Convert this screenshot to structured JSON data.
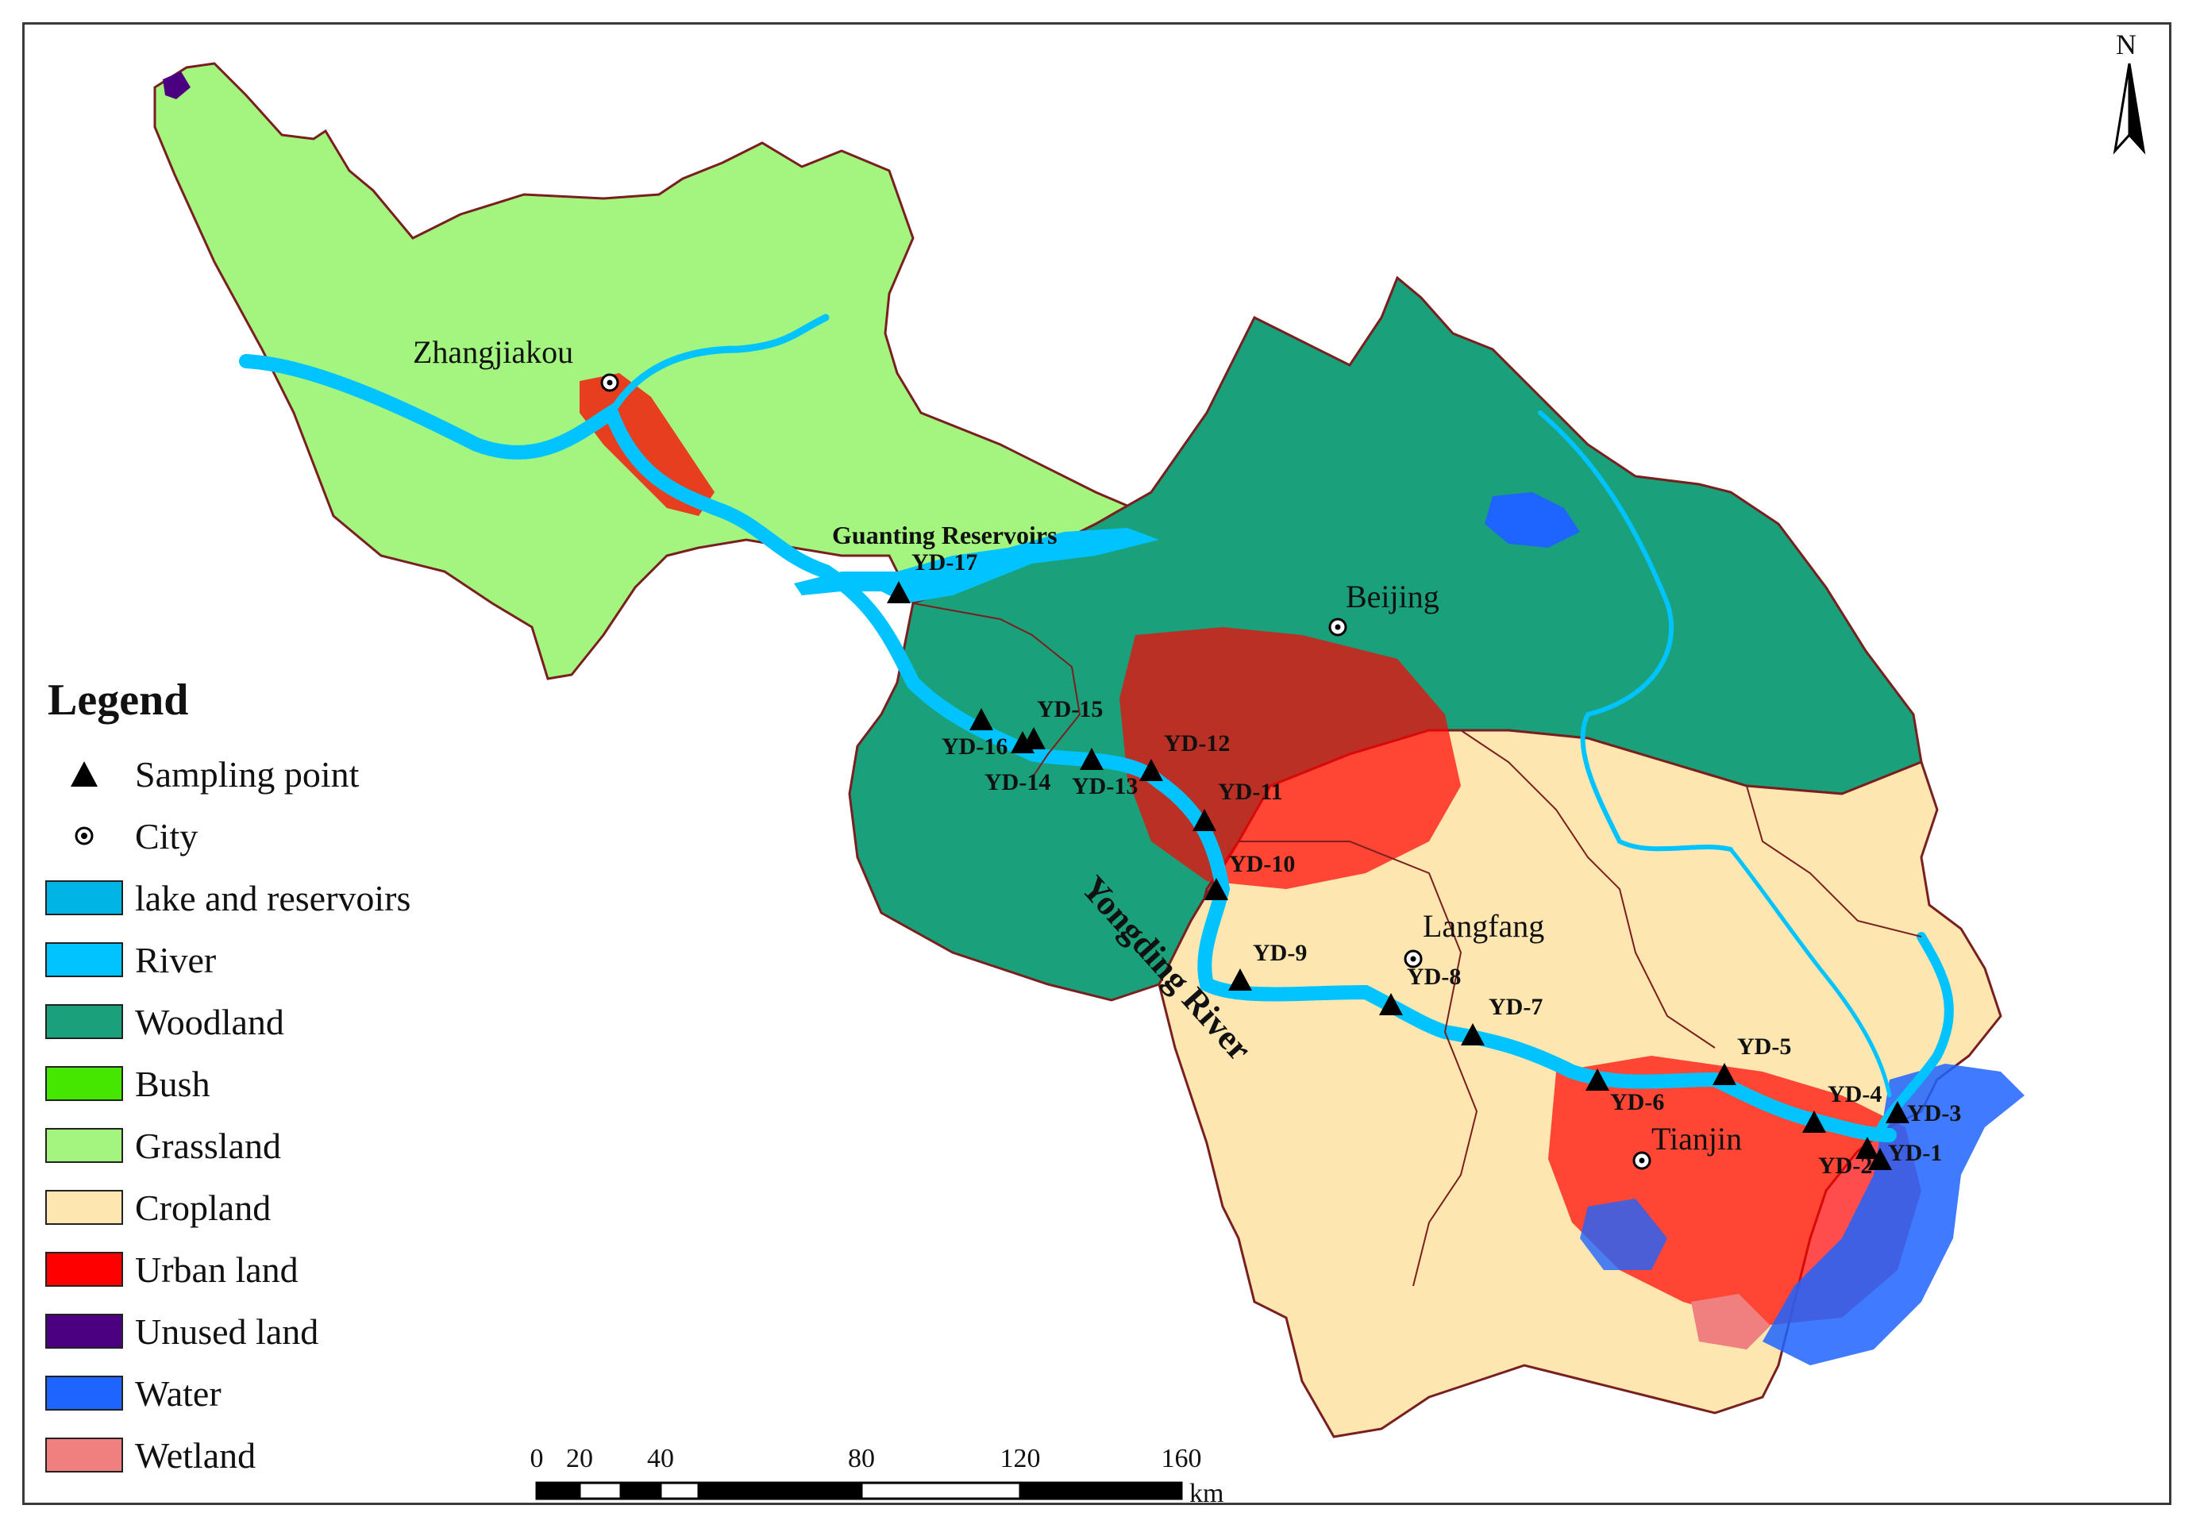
{
  "north_arrow": {
    "label": "N"
  },
  "map_labels": {
    "reservoir": "Guanting Reservoirs",
    "river": "Yongding River"
  },
  "cities": [
    {
      "name": "Zhangjiakou"
    },
    {
      "name": "Beijing"
    },
    {
      "name": "Langfang"
    },
    {
      "name": "Tianjin"
    }
  ],
  "sampling_points": [
    {
      "id": "YD-1"
    },
    {
      "id": "YD-2"
    },
    {
      "id": "YD-3"
    },
    {
      "id": "YD-4"
    },
    {
      "id": "YD-5"
    },
    {
      "id": "YD-6"
    },
    {
      "id": "YD-7"
    },
    {
      "id": "YD-8"
    },
    {
      "id": "YD-9"
    },
    {
      "id": "YD-10"
    },
    {
      "id": "YD-11"
    },
    {
      "id": "YD-12"
    },
    {
      "id": "YD-13"
    },
    {
      "id": "YD-14"
    },
    {
      "id": "YD-15"
    },
    {
      "id": "YD-16"
    },
    {
      "id": "YD-17"
    }
  ],
  "legend": {
    "title": "Legend",
    "items": [
      {
        "label": "Sampling point",
        "symbol": "triangle"
      },
      {
        "label": "City",
        "symbol": "city-dot"
      },
      {
        "label": "lake and reservoirs",
        "color": "#00b4e6"
      },
      {
        "label": "River",
        "color": "#00c3ff"
      },
      {
        "label": "Woodland",
        "color": "#1aa07a"
      },
      {
        "label": "Bush",
        "color": "#45e600"
      },
      {
        "label": "Grassland",
        "color": "#a3f57f"
      },
      {
        "label": "Cropland",
        "color": "#fde6b0"
      },
      {
        "label": "Urban land",
        "color": "#ff0000"
      },
      {
        "label": "Unused land",
        "color": "#4b0082"
      },
      {
        "label": "Water",
        "color": "#1e64ff"
      },
      {
        "label": "Wetland",
        "color": "#f08080"
      }
    ]
  },
  "scale_bar": {
    "ticks": [
      "0",
      "20",
      "40",
      "80",
      "120",
      "160"
    ],
    "unit": "km"
  }
}
